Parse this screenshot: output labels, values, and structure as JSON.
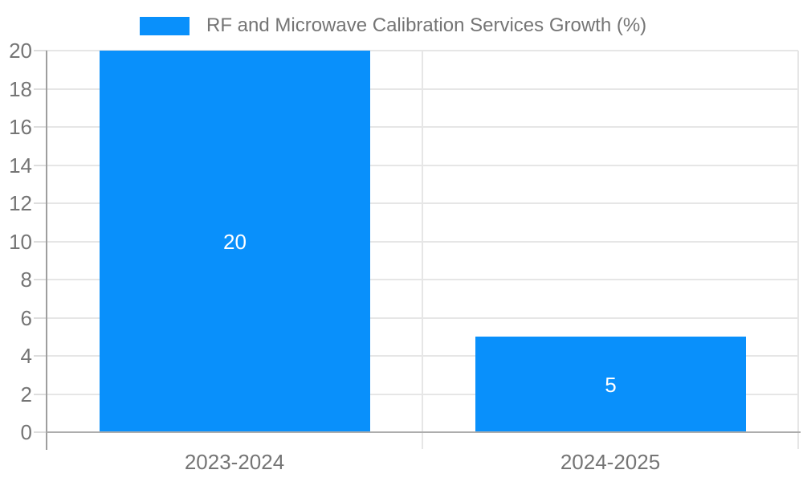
{
  "chart_data": {
    "type": "bar",
    "title": "RF and Microwave Calibration Services Growth (%)",
    "categories": [
      "2023-2024",
      "2024-2025"
    ],
    "values": [
      20,
      5
    ],
    "bar_value_labels": [
      "20",
      "5"
    ],
    "xlabel": "",
    "ylabel": "",
    "ylim": [
      0,
      20
    ],
    "yticks": [
      0,
      2,
      4,
      6,
      8,
      10,
      12,
      14,
      16,
      18,
      20
    ],
    "grid": true,
    "legend_position": "top",
    "legend_entries": [
      "RF and Microwave Calibration Services Growth (%)"
    ],
    "colors": {
      "bar": "#0990FB",
      "axis_text": "#757575",
      "annotation_text": "#FFFFFF",
      "gridline": "#E6E6E6",
      "tick_dash": "#DDDDDD",
      "axis_line": "#9E9E9E",
      "baseline": "#ADADAD",
      "background": "#FFFFFF"
    }
  },
  "legend": {
    "label": "RF and Microwave Calibration Services Growth (%)"
  }
}
